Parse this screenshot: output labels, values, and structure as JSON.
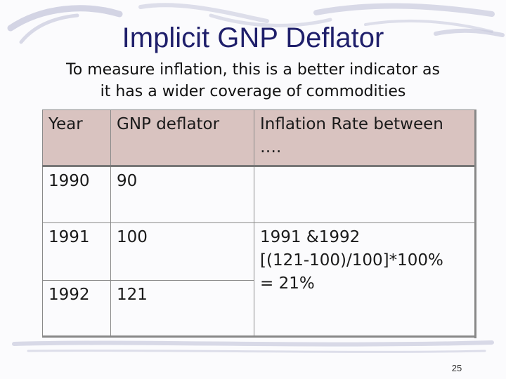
{
  "slide": {
    "title": "Implicit GNP Deflator",
    "subtitle_line1": "To measure inflation, this is a better indicator as",
    "subtitle_line2": "it has a wider coverage of commodities",
    "page_number": "25"
  },
  "table": {
    "headers": [
      "Year",
      "GNP deflator",
      "Inflation Rate between …."
    ],
    "rows": [
      {
        "year": "1990",
        "deflator": "90"
      },
      {
        "year": "1991",
        "deflator": "100"
      },
      {
        "year": "1992",
        "deflator": "121"
      }
    ],
    "inflation_note": {
      "line1": "1991 &1992",
      "line2": "[(121-100)/100]*100%",
      "line3": "= 21%"
    }
  },
  "colors": {
    "title": "#1f1f6b",
    "header_fill": "#d9c3c0",
    "swash": "#c7c9dc"
  }
}
